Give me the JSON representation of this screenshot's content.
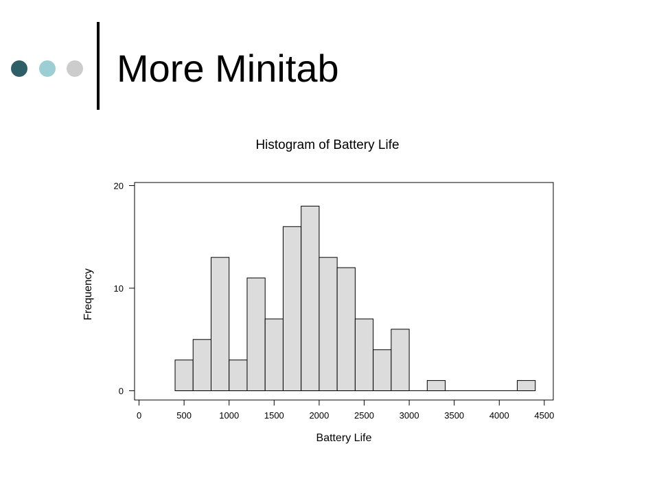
{
  "slide": {
    "title": "More Minitab",
    "bullet_colors": [
      "#2f5f66",
      "#9ccfd3",
      "#cccccc"
    ],
    "accent_bar_color": "#000000"
  },
  "chart_data": {
    "type": "bar",
    "title": "Histogram of Battery Life",
    "xlabel": "Battery Life",
    "ylabel": "Frequency",
    "xlim": [
      -50,
      4600
    ],
    "ylim": [
      -0.9,
      20.3
    ],
    "x_ticks": [
      0,
      500,
      1000,
      1500,
      2000,
      2500,
      3000,
      3500,
      4000,
      4500
    ],
    "y_ticks": [
      0,
      10,
      20
    ],
    "bin_width": 200,
    "bins": [
      {
        "start": 400,
        "end": 600,
        "count": 3
      },
      {
        "start": 600,
        "end": 800,
        "count": 5
      },
      {
        "start": 800,
        "end": 1000,
        "count": 13
      },
      {
        "start": 1000,
        "end": 1200,
        "count": 3
      },
      {
        "start": 1200,
        "end": 1400,
        "count": 11
      },
      {
        "start": 1400,
        "end": 1600,
        "count": 7
      },
      {
        "start": 1600,
        "end": 1800,
        "count": 16
      },
      {
        "start": 1800,
        "end": 2000,
        "count": 18
      },
      {
        "start": 2000,
        "end": 2200,
        "count": 13
      },
      {
        "start": 2200,
        "end": 2400,
        "count": 12
      },
      {
        "start": 2400,
        "end": 2600,
        "count": 7
      },
      {
        "start": 2600,
        "end": 2800,
        "count": 4
      },
      {
        "start": 2800,
        "end": 3000,
        "count": 6
      },
      {
        "start": 3000,
        "end": 3200,
        "count": 0
      },
      {
        "start": 3200,
        "end": 3400,
        "count": 1
      },
      {
        "start": 3400,
        "end": 3600,
        "count": 0
      },
      {
        "start": 3600,
        "end": 3800,
        "count": 0
      },
      {
        "start": 3800,
        "end": 4000,
        "count": 0
      },
      {
        "start": 4000,
        "end": 4200,
        "count": 0
      },
      {
        "start": 4200,
        "end": 4400,
        "count": 1
      }
    ],
    "bar_fill": "#dcdcdc",
    "bar_stroke": "#000000",
    "grid": false,
    "legend": "none"
  }
}
